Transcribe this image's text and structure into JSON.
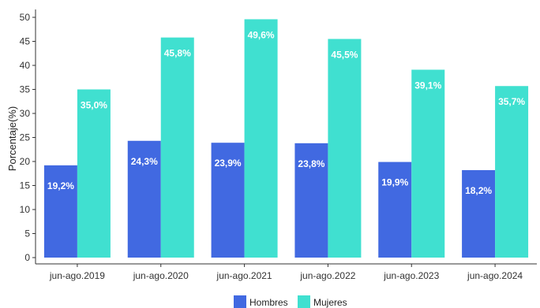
{
  "chart_data": {
    "type": "bar",
    "ylabel": "Porcentaje(%)",
    "xlabel": "",
    "ylim": [
      0,
      50
    ],
    "yticks": [
      0,
      5,
      10,
      15,
      20,
      25,
      30,
      35,
      40,
      45,
      50
    ],
    "grid": false,
    "legend_position": "bottom",
    "categories": [
      "jun-ago.2019",
      "jun-ago.2020",
      "jun-ago.2021",
      "jun-ago.2022",
      "jun-ago.2023",
      "jun-ago.2024"
    ],
    "series": [
      {
        "name": "Hombres",
        "color": "#4169e1",
        "values": [
          19.2,
          24.3,
          23.9,
          23.8,
          19.9,
          18.2
        ],
        "labels": [
          "19,2%",
          "24,3%",
          "23,9%",
          "23,8%",
          "19,9%",
          "18,2%"
        ]
      },
      {
        "name": "Mujeres",
        "color": "#40e0d0",
        "values": [
          35.0,
          45.8,
          49.6,
          45.5,
          39.1,
          35.7
        ],
        "labels": [
          "35,0%",
          "45,8%",
          "49,6%",
          "45,5%",
          "39,1%",
          "35,7%"
        ]
      }
    ]
  }
}
